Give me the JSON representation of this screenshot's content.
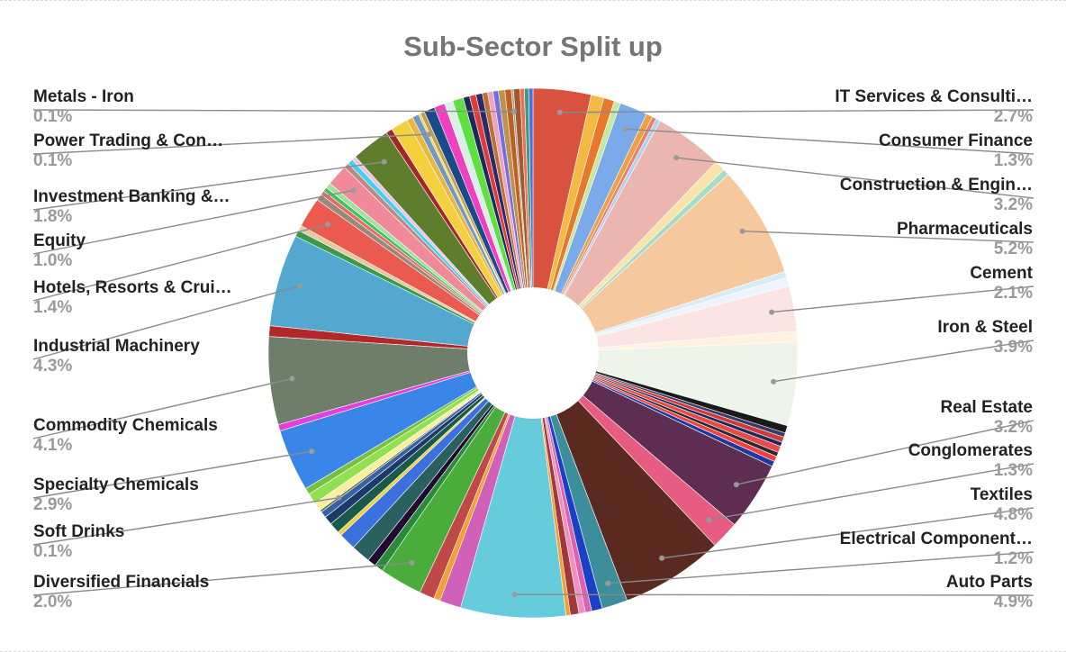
{
  "chart_data": {
    "type": "pie",
    "title": "Sub-Sector Split up",
    "donut": true,
    "legend": "none",
    "labeled_slices": [
      {
        "name": "IT Services & Consulti…",
        "value": 2.7,
        "color": "#d9513f"
      },
      {
        "name": "Consumer Finance",
        "value": 1.3,
        "color": "#7aaaea"
      },
      {
        "name": "Construction & Engin…",
        "value": 3.2,
        "color": "#ebb6b0"
      },
      {
        "name": "Pharmaceuticals",
        "value": 5.2,
        "color": "#f5c89e"
      },
      {
        "name": "Cement",
        "value": 2.1,
        "color": "#fce4e4"
      },
      {
        "name": "Iron & Steel",
        "value": 3.9,
        "color": "#eef4ea"
      },
      {
        "name": "Real Estate",
        "value": 3.2,
        "color": "#5e2d52"
      },
      {
        "name": "Conglomerates",
        "value": 1.3,
        "color": "#e85c82"
      },
      {
        "name": "Textiles",
        "value": 4.8,
        "color": "#5a2a20"
      },
      {
        "name": "Electrical Component…",
        "value": 1.2,
        "color": "#3b8e9a"
      },
      {
        "name": "Auto Parts",
        "value": 4.9,
        "color": "#66ccdc"
      },
      {
        "name": "Diversified Financials",
        "value": 2.0,
        "color": "#4aac3a"
      },
      {
        "name": "Soft Drinks",
        "value": 0.1,
        "color": "#5a6e3a"
      },
      {
        "name": "Specialty Chemicals",
        "value": 2.9,
        "color": "#3a86e8"
      },
      {
        "name": "Commodity Chemicals",
        "value": 4.1,
        "color": "#6e7e6a"
      },
      {
        "name": "Industrial Machinery",
        "value": 4.3,
        "color": "#54a8d0"
      },
      {
        "name": "Hotels, Resorts & Crui…",
        "value": 1.4,
        "color": "#ea5a4e"
      },
      {
        "name": "Equity",
        "value": 1.0,
        "color": "#f08a9a"
      },
      {
        "name": "Investment Banking &…",
        "value": 1.8,
        "color": "#5e7e2e"
      },
      {
        "name": "Power Trading & Con…",
        "value": 0.1,
        "color": "#f2d24a"
      },
      {
        "name": "Metals - Iron",
        "value": 0.1,
        "color": "#a0a0a0"
      }
    ]
  },
  "labels": {
    "it": {
      "name": "IT Services & Consulti…",
      "pct": "2.7%"
    },
    "cf": {
      "name": "Consumer Finance",
      "pct": "1.3%"
    },
    "ce": {
      "name": "Construction & Engin…",
      "pct": "3.2%"
    },
    "ph": {
      "name": "Pharmaceuticals",
      "pct": "5.2%"
    },
    "cem": {
      "name": "Cement",
      "pct": "2.1%"
    },
    "is": {
      "name": "Iron & Steel",
      "pct": "3.9%"
    },
    "re": {
      "name": "Real Estate",
      "pct": "3.2%"
    },
    "cg": {
      "name": "Conglomerates",
      "pct": "1.3%"
    },
    "tx": {
      "name": "Textiles",
      "pct": "4.8%"
    },
    "ec": {
      "name": "Electrical Component…",
      "pct": "1.2%"
    },
    "ap": {
      "name": "Auto Parts",
      "pct": "4.9%"
    },
    "mi": {
      "name": "Metals - Iron",
      "pct": "0.1%"
    },
    "pt": {
      "name": "Power Trading & Con…",
      "pct": "0.1%"
    },
    "ib": {
      "name": "Investment Banking &…",
      "pct": "1.8%"
    },
    "eq": {
      "name": "Equity",
      "pct": "1.0%"
    },
    "hr": {
      "name": "Hotels, Resorts & Crui…",
      "pct": "1.4%"
    },
    "im": {
      "name": "Industrial Machinery",
      "pct": "4.3%"
    },
    "cc": {
      "name": "Commodity Chemicals",
      "pct": "4.1%"
    },
    "sc": {
      "name": "Specialty Chemicals",
      "pct": "2.9%"
    },
    "sd": {
      "name": "Soft Drinks",
      "pct": "0.1%"
    },
    "df": {
      "name": "Diversified Financials",
      "pct": "2.0%"
    }
  }
}
